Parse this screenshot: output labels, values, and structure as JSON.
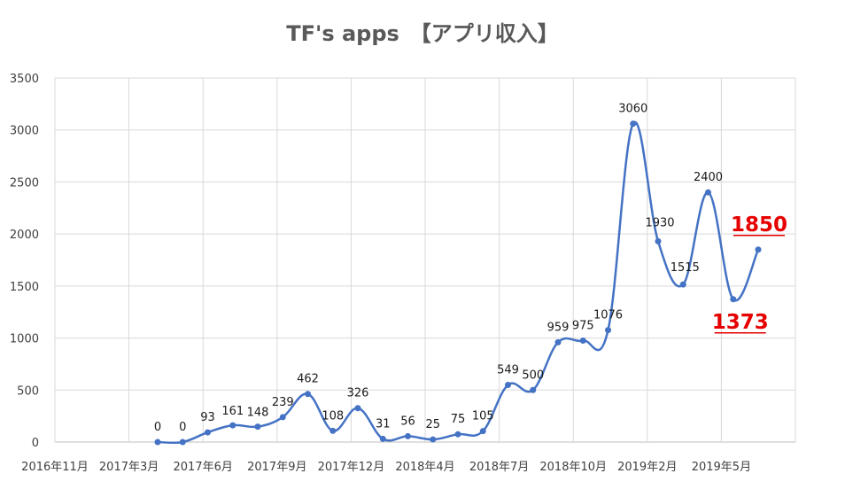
{
  "chart_data": {
    "type": "line",
    "title": "TF's apps　【アプリ収入】",
    "xlabel": "",
    "ylabel": "",
    "ylim": [
      0,
      3500
    ],
    "yticks": [
      0,
      500,
      1000,
      1500,
      2000,
      2500,
      3000,
      3500
    ],
    "xticks": [
      "2016年11月",
      "2017年3月",
      "2017年6月",
      "2017年9月",
      "2017年12月",
      "2018年4月",
      "2018年7月",
      "2018年10月",
      "2019年2月",
      "2019年5月"
    ],
    "grid": true,
    "legend": "none",
    "line_color": "#4472c4",
    "highlight_color": "#e60000",
    "series": [
      {
        "values": [
          0,
          0,
          93,
          161,
          148,
          239,
          462,
          108,
          326,
          31,
          56,
          25,
          75,
          105,
          549,
          500,
          959,
          975,
          1076,
          3060,
          1930,
          1515,
          2400,
          1373,
          1850
        ],
        "labels": [
          "0",
          "0",
          "93",
          "161",
          "148",
          "239",
          "462",
          "108",
          "326",
          "31",
          "56",
          "25",
          "75",
          "105",
          "549",
          "500",
          "959",
          "975",
          "1076",
          "3060",
          "1930",
          "1515",
          "2400",
          "1373",
          "1850"
        ]
      }
    ],
    "highlighted": [
      "1373",
      "1850"
    ]
  }
}
